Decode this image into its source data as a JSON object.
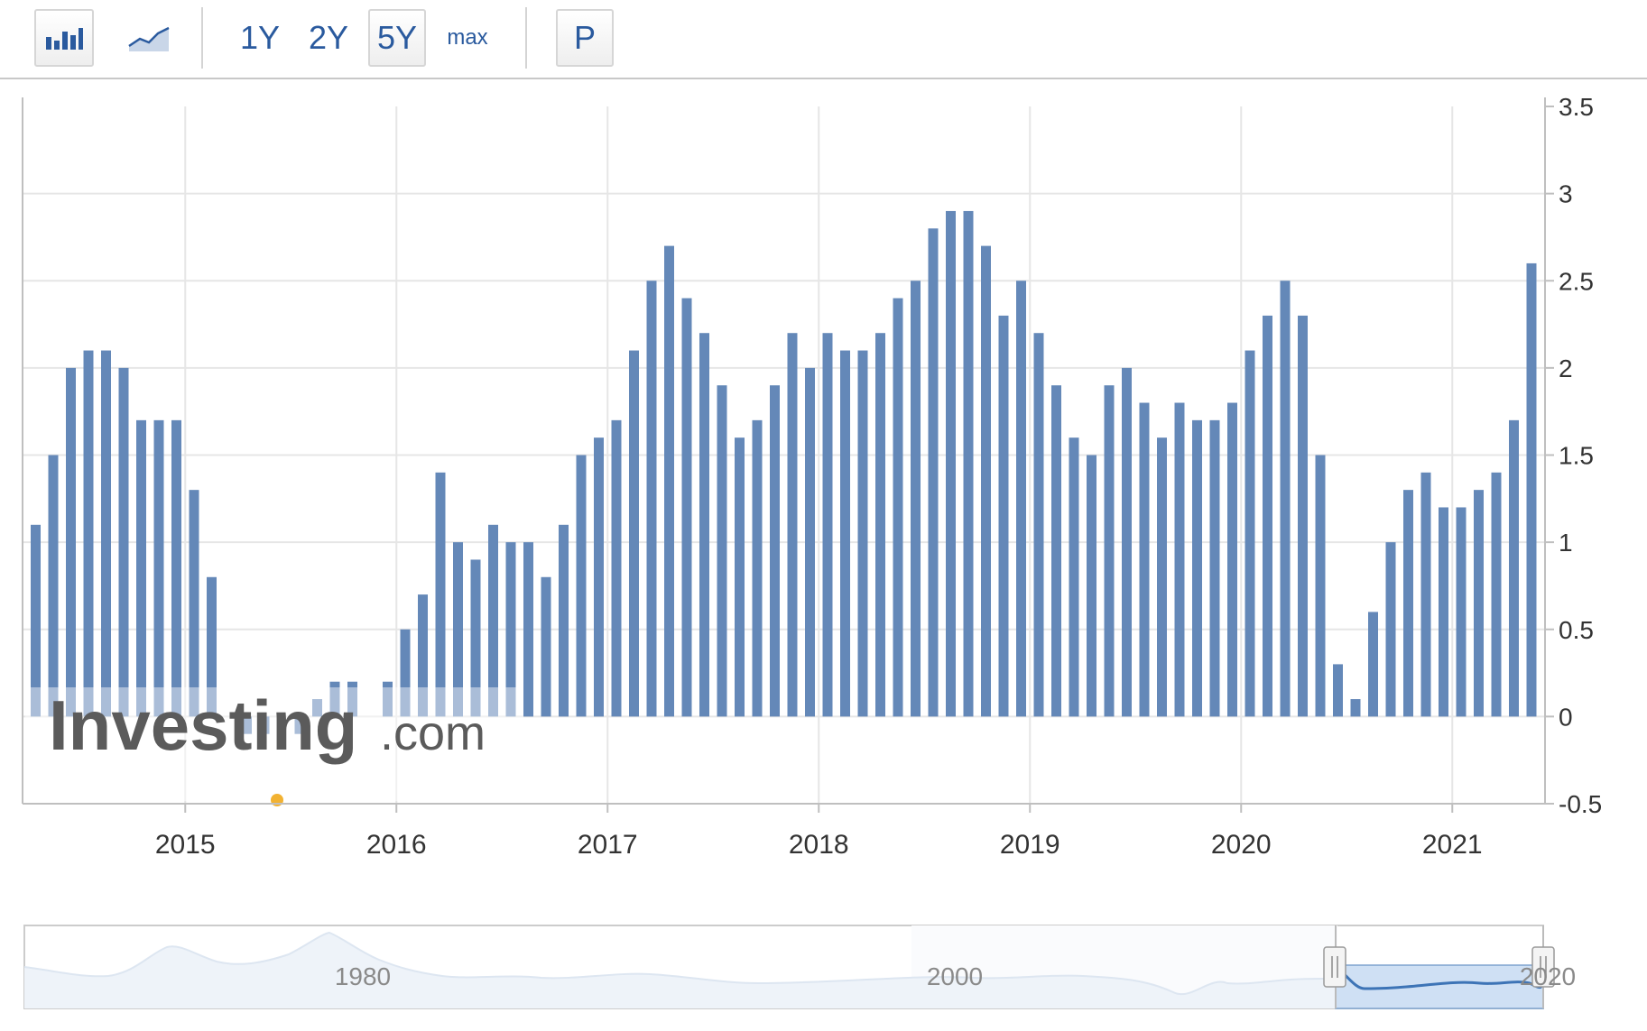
{
  "toolbar": {
    "bar_chart_button": "bar-chart-icon",
    "line_chart_button": "area-chart-icon",
    "ranges": [
      "1Y",
      "2Y",
      "5Y",
      "max"
    ],
    "selected_range": "5Y",
    "p_label": "P"
  },
  "watermark": {
    "brand": "Investing",
    "suffix": ".com"
  },
  "colors": {
    "bar": "#6488b8",
    "bar_light": "#a9bfdc",
    "grid": "#e6e6e6",
    "axis": "#bfbfbf",
    "text": "#333333",
    "toolbar_text": "#2a5a9e"
  },
  "chart_data": {
    "type": "bar",
    "x_start": "2014-04",
    "frequency": "monthly",
    "values": [
      1.1,
      1.5,
      2.0,
      2.1,
      2.1,
      2.0,
      1.7,
      1.7,
      1.7,
      1.3,
      0.8,
      0.0,
      -0.1,
      -0.1,
      0.0,
      -0.1,
      0.1,
      0.2,
      0.2,
      0.0,
      0.2,
      0.5,
      0.7,
      1.4,
      1.0,
      0.9,
      1.1,
      1.0,
      1.0,
      0.8,
      1.1,
      1.5,
      1.6,
      1.7,
      2.1,
      2.5,
      2.7,
      2.4,
      2.2,
      1.9,
      1.6,
      1.7,
      1.9,
      2.2,
      2.0,
      2.2,
      2.1,
      2.1,
      2.2,
      2.4,
      2.5,
      2.8,
      2.9,
      2.9,
      2.7,
      2.3,
      2.5,
      2.2,
      1.9,
      1.6,
      1.5,
      1.9,
      2.0,
      1.8,
      1.6,
      1.8,
      1.7,
      1.7,
      1.8,
      2.1,
      2.3,
      2.5,
      2.3,
      1.5,
      0.3,
      0.1,
      0.6,
      1.0,
      1.3,
      1.4,
      1.2,
      1.2,
      1.3,
      1.4,
      1.7,
      2.6
    ],
    "x_tick_labels": [
      "2015",
      "2016",
      "2017",
      "2018",
      "2019",
      "2020",
      "2021"
    ],
    "y_ticks": [
      "3.5",
      "3",
      "2.5",
      "2",
      "1.5",
      "1",
      "0.5",
      "0",
      "-0.5"
    ],
    "ylim": [
      -0.5,
      3.5
    ],
    "grid": true,
    "y_axis_side": "right"
  },
  "navigator": {
    "labels": [
      "1980",
      "2000",
      "2020"
    ]
  }
}
